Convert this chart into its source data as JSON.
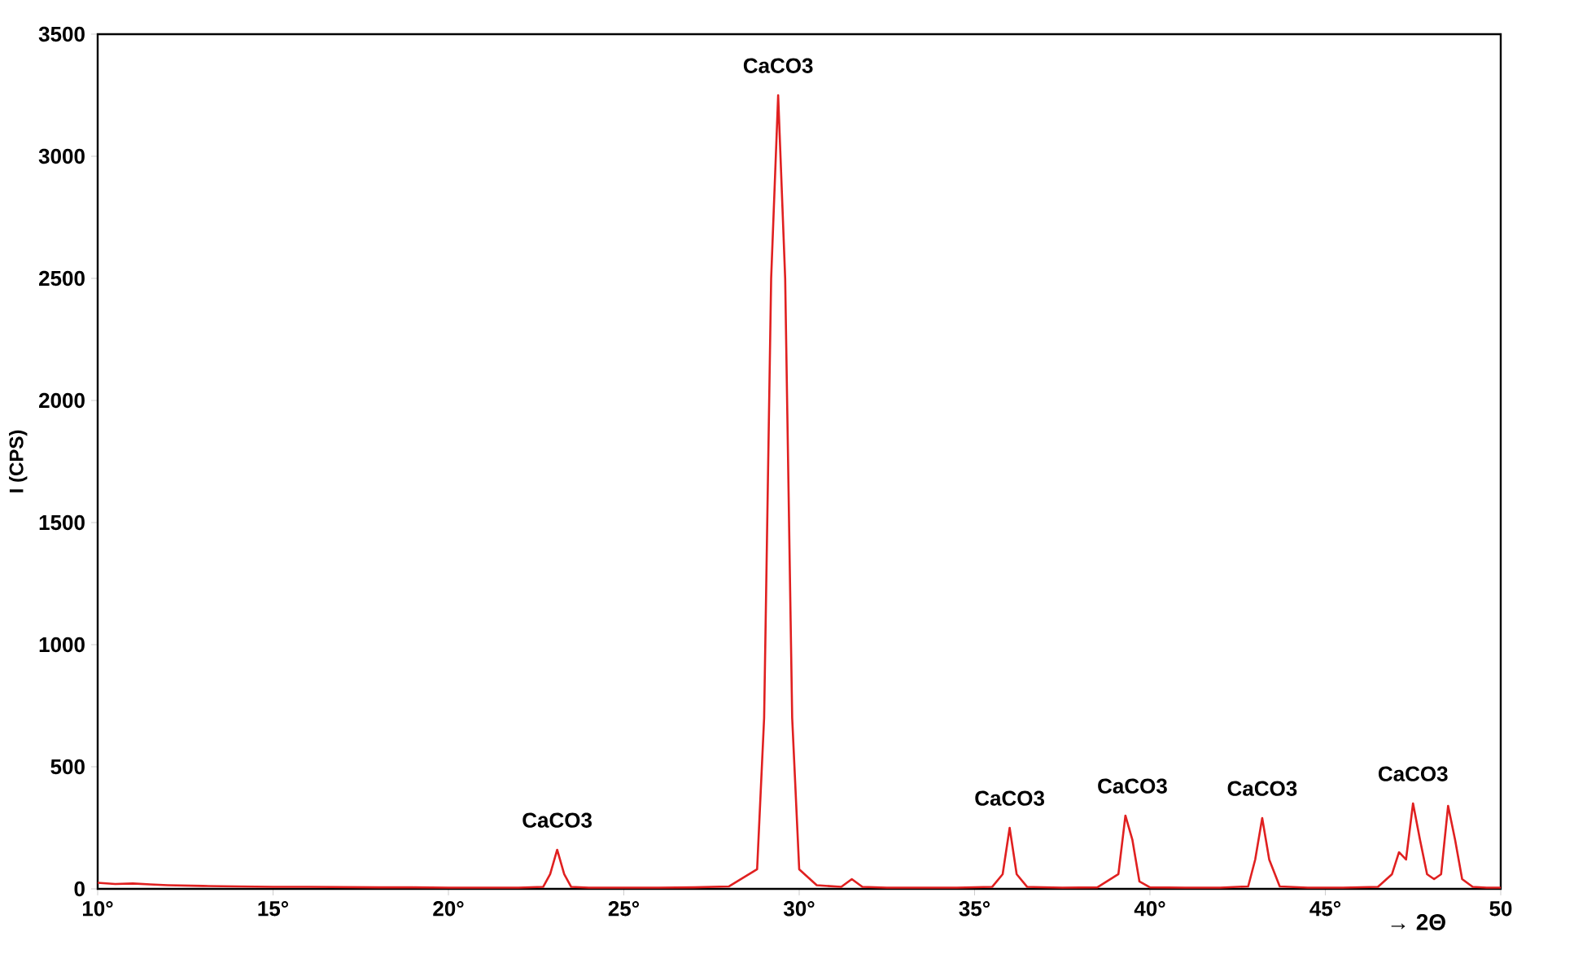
{
  "chart_data": {
    "type": "line",
    "ylabel": "I (CPS)",
    "xlabel": "→ 2Θ",
    "xlim": [
      10,
      50
    ],
    "ylim": [
      0,
      3500
    ],
    "xticks": [
      {
        "value": 10,
        "label": "10°"
      },
      {
        "value": 15,
        "label": "15°"
      },
      {
        "value": 20,
        "label": "20°"
      },
      {
        "value": 25,
        "label": "25°"
      },
      {
        "value": 30,
        "label": "30°"
      },
      {
        "value": 35,
        "label": "35°"
      },
      {
        "value": 40,
        "label": "40°"
      },
      {
        "value": 45,
        "label": "45°"
      },
      {
        "value": 50,
        "label": "50"
      }
    ],
    "yticks": [
      0,
      500,
      1000,
      1500,
      2000,
      2500,
      3000,
      3500
    ],
    "grid": false,
    "marker": "none",
    "line_style": "solid",
    "series": [
      {
        "color": "#e02020",
        "x": [
          10,
          10.5,
          11,
          11.5,
          12,
          13,
          14,
          15,
          16,
          17,
          18,
          19,
          20,
          21,
          22,
          22.7,
          22.9,
          23.1,
          23.3,
          23.5,
          24,
          25,
          26,
          27,
          28,
          28.8,
          29.0,
          29.2,
          29.4,
          29.6,
          29.8,
          30.0,
          30.5,
          31.2,
          31.5,
          31.8,
          32.5,
          33.5,
          34.5,
          35.5,
          35.8,
          36.0,
          36.2,
          36.5,
          37.5,
          38.5,
          39.1,
          39.3,
          39.5,
          39.7,
          40.0,
          41,
          42,
          42.8,
          43.0,
          43.2,
          43.4,
          43.7,
          44.5,
          45.5,
          46.5,
          46.9,
          47.1,
          47.3,
          47.5,
          47.7,
          47.9,
          48.1,
          48.3,
          48.5,
          48.7,
          48.9,
          49.2,
          49.6,
          50
        ],
        "values": [
          25,
          20,
          22,
          18,
          15,
          12,
          10,
          8,
          8,
          7,
          6,
          6,
          5,
          5,
          5,
          8,
          60,
          160,
          60,
          8,
          5,
          5,
          5,
          6,
          10,
          80,
          700,
          2500,
          3250,
          2500,
          700,
          80,
          15,
          8,
          40,
          8,
          5,
          5,
          5,
          8,
          60,
          250,
          60,
          8,
          5,
          6,
          60,
          300,
          200,
          30,
          6,
          5,
          5,
          10,
          120,
          290,
          120,
          10,
          5,
          5,
          8,
          60,
          150,
          120,
          350,
          200,
          60,
          40,
          60,
          340,
          200,
          40,
          8,
          5,
          5
        ]
      }
    ],
    "annotations": [
      {
        "text": "CaCO3",
        "x": 23.1,
        "y": 160
      },
      {
        "text": "CaCO3",
        "x": 29.4,
        "y": 3250
      },
      {
        "text": "CaCO3",
        "x": 36.0,
        "y": 250
      },
      {
        "text": "CaCO3",
        "x": 39.5,
        "y": 300
      },
      {
        "text": "CaCO3",
        "x": 43.2,
        "y": 290
      },
      {
        "text": "CaCO3",
        "x": 47.5,
        "y": 350
      }
    ]
  }
}
